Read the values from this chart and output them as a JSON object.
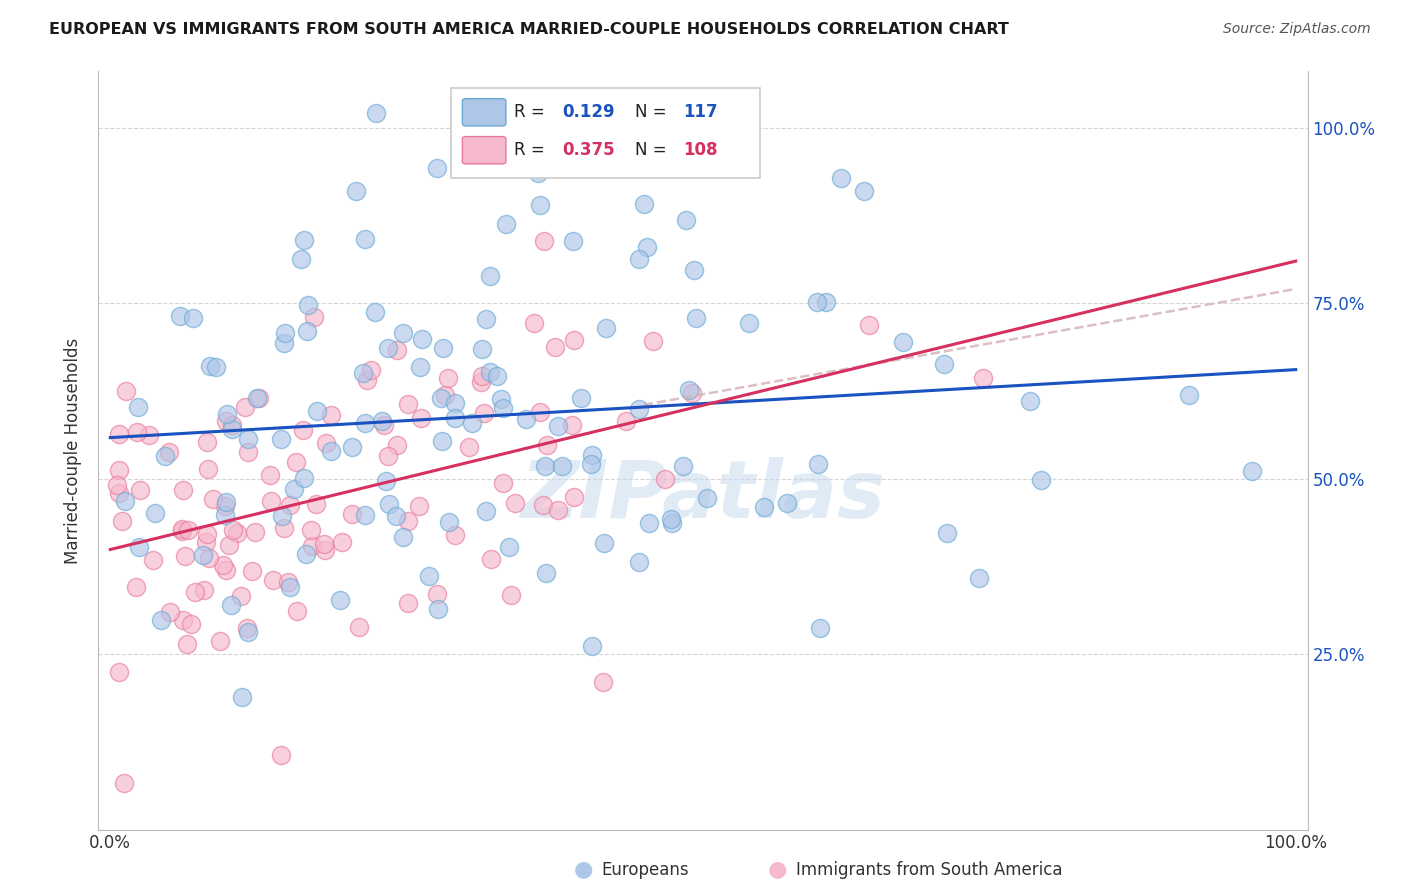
{
  "title": "EUROPEAN VS IMMIGRANTS FROM SOUTH AMERICA MARRIED-COUPLE HOUSEHOLDS CORRELATION CHART",
  "source": "Source: ZipAtlas.com",
  "ylabel": "Married-couple Households",
  "R_european": 0.129,
  "N_european": 117,
  "R_southamerica": 0.375,
  "N_southamerica": 108,
  "blue_scatter_face": "#aec6e8",
  "blue_scatter_edge": "#6aaad4",
  "pink_scatter_face": "#f5b8cc",
  "pink_scatter_edge": "#e87a9a",
  "blue_line_color": "#1a52c0",
  "pink_line_color": "#d63060",
  "pink_dashed_color": "#d4b0b8",
  "watermark_color": "#c5d8ec",
  "background": "#ffffff",
  "grid_color": "#cccccc",
  "title_color": "#1a1a1a",
  "source_color": "#555555",
  "axis_label_color": "#333333",
  "tick_color": "#333333",
  "right_tick_color": "#1a52c0"
}
